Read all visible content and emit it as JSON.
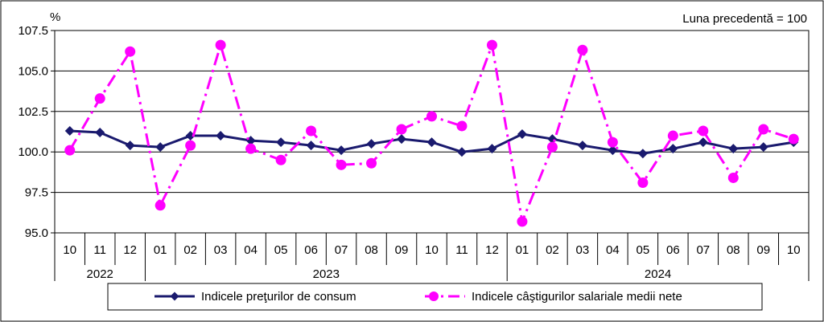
{
  "chart_data": {
    "type": "line",
    "title": "",
    "ylabel": "%",
    "note": "Luna precedentă = 100",
    "ylim": [
      95.0,
      107.5
    ],
    "yticks": [
      "95.0",
      "97.5",
      "100.0",
      "102.5",
      "105.0",
      "107.5"
    ],
    "grid": true,
    "legend_position": "bottom",
    "categories": [
      "10",
      "11",
      "12",
      "01",
      "02",
      "03",
      "04",
      "05",
      "06",
      "07",
      "08",
      "09",
      "10",
      "11",
      "12",
      "01",
      "02",
      "03",
      "04",
      "05",
      "06",
      "07",
      "08",
      "09",
      "10"
    ],
    "year_groups": [
      {
        "label": "2022",
        "count": 3
      },
      {
        "label": "2023",
        "count": 12
      },
      {
        "label": "2024",
        "count": 10
      }
    ],
    "series": [
      {
        "name": "Indicele preţurilor de consum",
        "color": "#1a1a6e",
        "style": "solid-diamond",
        "values": [
          101.3,
          101.2,
          100.4,
          100.3,
          101.0,
          101.0,
          100.7,
          100.6,
          100.4,
          100.1,
          100.5,
          100.8,
          100.6,
          100.0,
          100.2,
          101.1,
          100.8,
          100.4,
          100.1,
          99.9,
          100.2,
          100.6,
          100.2,
          100.3,
          100.6
        ]
      },
      {
        "name": "Indicele câştigurilor salariale medii nete",
        "color": "#ff00ff",
        "style": "dashdot-circle",
        "values": [
          100.1,
          103.3,
          106.2,
          96.7,
          100.4,
          106.6,
          100.2,
          99.5,
          101.3,
          99.2,
          99.3,
          101.4,
          102.2,
          101.6,
          106.6,
          95.7,
          100.3,
          106.3,
          100.6,
          98.1,
          101.0,
          101.3,
          98.4,
          101.4,
          100.8
        ]
      }
    ]
  }
}
